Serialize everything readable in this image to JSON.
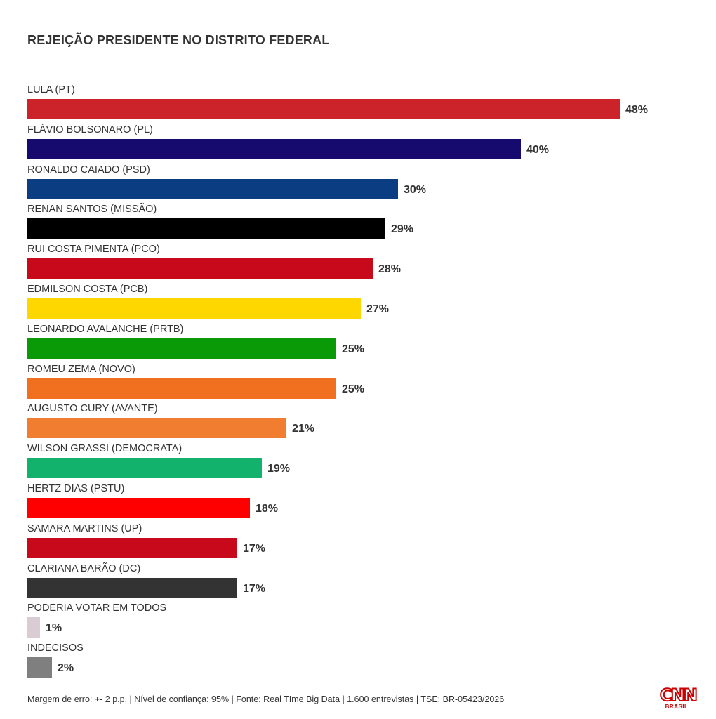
{
  "title": "REJEIÇÃO PRESIDENTE NO DISTRITO FEDERAL",
  "chart_data": {
    "type": "bar",
    "orientation": "horizontal",
    "title": "REJEIÇÃO PRESIDENTE NO DISTRITO FEDERAL",
    "unit": "%",
    "categories": [
      "LULA (PT)",
      "FLÁVIO BOLSONARO (PL)",
      "RONALDO CAIADO (PSD)",
      "RENAN SANTOS (MISSÃO)",
      "RUI COSTA PIMENTA (PCO)",
      "EDMILSON COSTA (PCB)",
      "LEONARDO AVALANCHE (PRTB)",
      "ROMEU ZEMA (NOVO)",
      "AUGUSTO CURY (AVANTE)",
      "WILSON GRASSI (DEMOCRATA)",
      "HERTZ DIAS (PSTU)",
      "SAMARA MARTINS (UP)",
      "CLARIANA BARÃO (DC)",
      "PODERIA VOTAR EM TODOS",
      "INDECISOS"
    ],
    "values": [
      48,
      40,
      30,
      29,
      28,
      27,
      25,
      25,
      21,
      19,
      18,
      17,
      17,
      1,
      2
    ],
    "value_labels": [
      "48%",
      "40%",
      "30%",
      "29%",
      "28%",
      "27%",
      "25%",
      "25%",
      "21%",
      "19%",
      "18%",
      "17%",
      "17%",
      "1%",
      "2%"
    ],
    "colors": [
      "#cc2229",
      "#160a6e",
      "#0b3d82",
      "#000000",
      "#c8091c",
      "#ffd700",
      "#0a9a08",
      "#f07020",
      "#f07d30",
      "#12b26c",
      "#ff0000",
      "#c8091c",
      "#333333",
      "#d9cdd3",
      "#7f7f7f"
    ],
    "grid": false,
    "legend": "none"
  },
  "footer": "Margem de erro: +- 2 p.p. | Nível de confiança: 95% | Fonte: Real TIme Big Data | 1.600 entrevistas | TSE: BR-05423/2026",
  "logo": {
    "word": "CNN",
    "sub": "BRASIL",
    "color": "#cc0000"
  }
}
